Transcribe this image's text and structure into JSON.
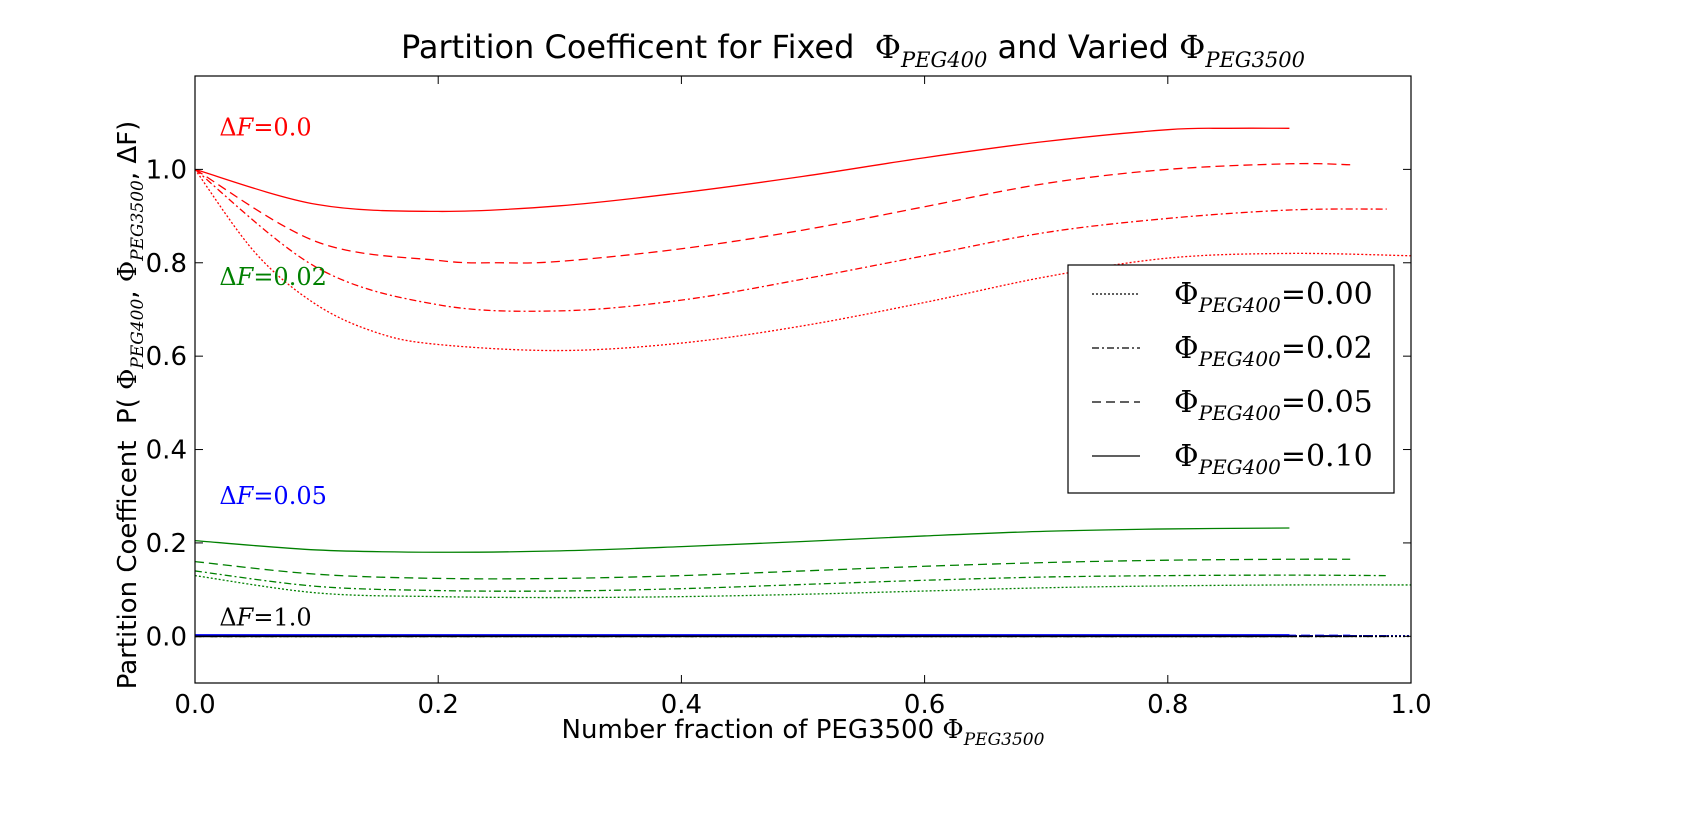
{
  "chart_data": {
    "type": "line",
    "title": {
      "text": "Partition Coefficent for Fixed  Φ_PEG400 and Varied Φ_PEG3500",
      "part1": "Partition Coefficent for Fixed  ",
      "phi1": "Φ",
      "sub1": "PEG400",
      "part2": " and Varied ",
      "phi2": "Φ",
      "sub2": "PEG3500"
    },
    "xlabel": {
      "text": "Number fraction of PEG3500 Φ_PEG3500",
      "main": "Number fraction of PEG3500 ",
      "phi": "Φ",
      "sub": "PEG3500"
    },
    "ylabel": {
      "text": "Partition Coefficent  P( Φ_PEG400, Φ_PEG3500, ΔF)",
      "main": "Partition Coefficent  P( ",
      "phi1": "Φ",
      "sub1": "PEG400",
      "sep": ", ",
      "phi2": "Φ",
      "sub2": "PEG3500",
      "tail": ", ΔF)"
    },
    "xlim": [
      0.0,
      1.0
    ],
    "ylim": [
      -0.1,
      1.2
    ],
    "xticks": [
      "0.0",
      "0.2",
      "0.4",
      "0.6",
      "0.8",
      "1.0"
    ],
    "yticks": [
      "0.0",
      "0.2",
      "0.4",
      "0.6",
      "0.8",
      "1.0"
    ],
    "grid": false,
    "legend": {
      "placement": "center-right",
      "entries": [
        {
          "phi": "Φ",
          "sub": "PEG400",
          "eq": "=0.00",
          "style": "dotted"
        },
        {
          "phi": "Φ",
          "sub": "PEG400",
          "eq": "=0.02",
          "style": "dashdot"
        },
        {
          "phi": "Φ",
          "sub": "PEG400",
          "eq": "=0.05",
          "style": "dashed"
        },
        {
          "phi": "Φ",
          "sub": "PEG400",
          "eq": "=0.10",
          "style": "solid"
        }
      ]
    },
    "annotations": [
      {
        "text": "ΔF=0.0",
        "delta": "Δ",
        "var": "F",
        "eq": "=0.0",
        "color": "#ff0000",
        "x": 0.02,
        "y": 1.09
      },
      {
        "text": "ΔF=0.02",
        "delta": "Δ",
        "var": "F",
        "eq": "=0.02",
        "color": "#008000",
        "x": 0.02,
        "y": 0.77
      },
      {
        "text": "ΔF=0.05",
        "delta": "Δ",
        "var": "F",
        "eq": "=0.05",
        "color": "#0000ff",
        "x": 0.02,
        "y": 0.3
      },
      {
        "text": "ΔF=1.0",
        "delta": "Δ",
        "var": "F",
        "eq": "=1.0",
        "color": "#000000",
        "x": 0.02,
        "y": 0.04
      }
    ],
    "series": [
      {
        "group": "ΔF=0.0",
        "phi_peg400": "0.10",
        "style": "solid",
        "color": "#ff0000",
        "x": [
          0.0,
          0.1,
          0.2,
          0.3,
          0.4,
          0.5,
          0.6,
          0.7,
          0.8,
          0.85,
          0.9
        ],
        "y": [
          1.0,
          0.925,
          0.91,
          0.922,
          0.95,
          0.985,
          1.025,
          1.06,
          1.085,
          1.088,
          1.088
        ]
      },
      {
        "group": "ΔF=0.0",
        "phi_peg400": "0.05",
        "style": "dashed",
        "color": "#ff0000",
        "x": [
          0.0,
          0.1,
          0.2,
          0.25,
          0.3,
          0.4,
          0.5,
          0.6,
          0.7,
          0.8,
          0.9,
          0.95
        ],
        "y": [
          1.0,
          0.845,
          0.805,
          0.8,
          0.803,
          0.83,
          0.87,
          0.92,
          0.97,
          1.0,
          1.012,
          1.01
        ]
      },
      {
        "group": "ΔF=0.0",
        "phi_peg400": "0.02",
        "style": "dashdot",
        "color": "#ff0000",
        "x": [
          0.0,
          0.1,
          0.2,
          0.3,
          0.4,
          0.5,
          0.6,
          0.7,
          0.8,
          0.9,
          0.98
        ],
        "y": [
          1.0,
          0.79,
          0.71,
          0.697,
          0.72,
          0.765,
          0.815,
          0.865,
          0.895,
          0.913,
          0.915
        ]
      },
      {
        "group": "ΔF=0.0",
        "phi_peg400": "0.00",
        "style": "dotted",
        "color": "#ff0000",
        "x": [
          0.0,
          0.05,
          0.1,
          0.15,
          0.2,
          0.3,
          0.4,
          0.5,
          0.6,
          0.7,
          0.8,
          0.9,
          1.0
        ],
        "y": [
          1.0,
          0.82,
          0.71,
          0.65,
          0.625,
          0.612,
          0.628,
          0.665,
          0.715,
          0.77,
          0.81,
          0.82,
          0.815
        ]
      },
      {
        "group": "ΔF=0.02",
        "phi_peg400": "0.10",
        "style": "solid",
        "color": "#008000",
        "x": [
          0.0,
          0.1,
          0.2,
          0.3,
          0.4,
          0.5,
          0.6,
          0.7,
          0.8,
          0.9
        ],
        "y": [
          0.205,
          0.185,
          0.18,
          0.183,
          0.192,
          0.203,
          0.215,
          0.225,
          0.23,
          0.232
        ]
      },
      {
        "group": "ΔF=0.02",
        "phi_peg400": "0.05",
        "style": "dashed",
        "color": "#008000",
        "x": [
          0.0,
          0.1,
          0.2,
          0.3,
          0.4,
          0.5,
          0.6,
          0.7,
          0.8,
          0.9,
          0.95
        ],
        "y": [
          0.16,
          0.133,
          0.124,
          0.124,
          0.13,
          0.14,
          0.15,
          0.158,
          0.163,
          0.165,
          0.165
        ]
      },
      {
        "group": "ΔF=0.02",
        "phi_peg400": "0.02",
        "style": "dashdot",
        "color": "#008000",
        "x": [
          0.0,
          0.1,
          0.2,
          0.3,
          0.4,
          0.5,
          0.6,
          0.7,
          0.8,
          0.9,
          0.98
        ],
        "y": [
          0.14,
          0.107,
          0.098,
          0.097,
          0.102,
          0.111,
          0.12,
          0.127,
          0.13,
          0.131,
          0.13
        ]
      },
      {
        "group": "ΔF=0.02",
        "phi_peg400": "0.00",
        "style": "dotted",
        "color": "#008000",
        "x": [
          0.0,
          0.1,
          0.2,
          0.3,
          0.4,
          0.5,
          0.6,
          0.7,
          0.8,
          0.9,
          1.0
        ],
        "y": [
          0.13,
          0.093,
          0.085,
          0.083,
          0.085,
          0.09,
          0.097,
          0.104,
          0.108,
          0.11,
          0.11
        ]
      },
      {
        "group": "ΔF=0.05",
        "phi_peg400": "0.10",
        "style": "solid",
        "color": "#0000ff",
        "x": [
          0.0,
          0.9
        ],
        "y": [
          0.003,
          0.003
        ]
      },
      {
        "group": "ΔF=0.05",
        "phi_peg400": "0.05",
        "style": "dashed",
        "color": "#0000ff",
        "x": [
          0.0,
          0.95
        ],
        "y": [
          0.002,
          0.002
        ]
      },
      {
        "group": "ΔF=0.05",
        "phi_peg400": "0.02",
        "style": "dashdot",
        "color": "#0000ff",
        "x": [
          0.0,
          0.98
        ],
        "y": [
          0.001,
          0.001
        ]
      },
      {
        "group": "ΔF=0.05",
        "phi_peg400": "0.00",
        "style": "dotted",
        "color": "#0000ff",
        "x": [
          0.0,
          1.0
        ],
        "y": [
          0.001,
          0.001
        ]
      },
      {
        "group": "ΔF=1.0",
        "phi_peg400": "0.10",
        "style": "solid",
        "color": "#000000",
        "x": [
          0.0,
          0.9
        ],
        "y": [
          0.0,
          0.0
        ]
      },
      {
        "group": "ΔF=1.0",
        "phi_peg400": "0.05",
        "style": "dashed",
        "color": "#000000",
        "x": [
          0.0,
          0.95
        ],
        "y": [
          0.0,
          0.0
        ]
      },
      {
        "group": "ΔF=1.0",
        "phi_peg400": "0.02",
        "style": "dashdot",
        "color": "#000000",
        "x": [
          0.0,
          0.98
        ],
        "y": [
          0.0,
          0.0
        ]
      },
      {
        "group": "ΔF=1.0",
        "phi_peg400": "0.00",
        "style": "dotted",
        "color": "#000000",
        "x": [
          0.0,
          1.0
        ],
        "y": [
          0.0,
          0.0
        ]
      }
    ]
  }
}
